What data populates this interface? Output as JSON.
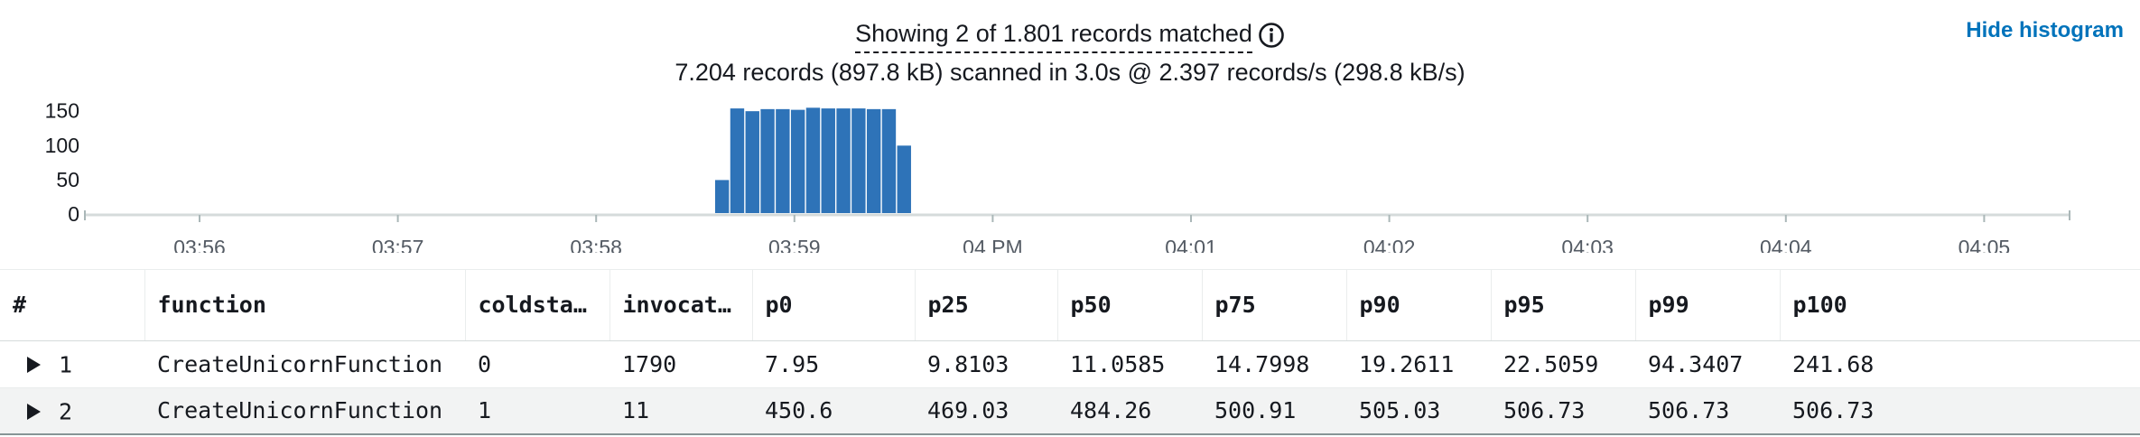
{
  "summary": {
    "matched": "Showing 2 of 1.801 records matched",
    "scanned": "7.204 records (897.8 kB) scanned in 3.0s @ 2.397 records/s (298.8 kB/s)"
  },
  "hide_histogram": "Hide histogram",
  "histogram": {
    "bar_color": "#2e73b8",
    "ylim": [
      0,
      160
    ],
    "yticks": [
      0,
      50,
      100,
      150
    ],
    "xticks": [
      "03:56",
      "03:57",
      "03:58",
      "03:59",
      "04 PM",
      "04:01",
      "04:02",
      "04:03",
      "04:04",
      "04:05"
    ],
    "bars": [
      48,
      152,
      148,
      151,
      151,
      150,
      153,
      152,
      152,
      152,
      151,
      151,
      98
    ]
  },
  "table": {
    "columns": [
      "#",
      "function",
      "coldsta…",
      "invocat…",
      "p0",
      "p25",
      "p50",
      "p75",
      "p90",
      "p95",
      "p99",
      "p100"
    ],
    "rows": [
      {
        "index": "1",
        "cells": [
          "CreateUnicornFunction",
          "0",
          "1790",
          "7.95",
          "9.8103",
          "11.0585",
          "14.7998",
          "19.2611",
          "22.5059",
          "94.3407",
          "241.68"
        ]
      },
      {
        "index": "2",
        "cells": [
          "CreateUnicornFunction",
          "1",
          "11",
          "450.6",
          "469.03",
          "484.26",
          "500.91",
          "505.03",
          "506.73",
          "506.73",
          "506.73"
        ]
      }
    ]
  }
}
